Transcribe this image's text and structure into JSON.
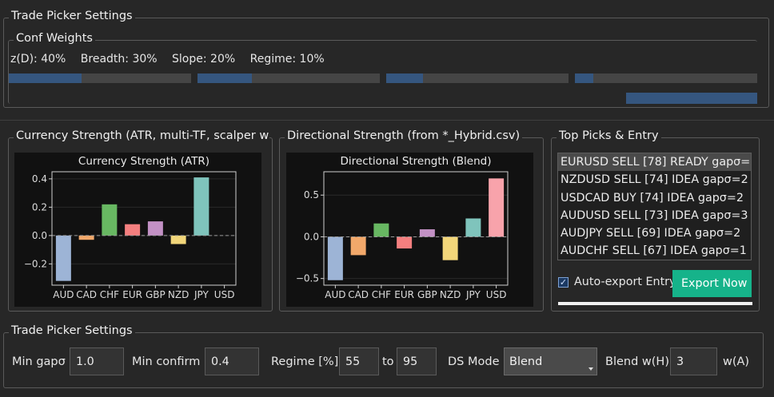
{
  "top_group": {
    "title": "Trade Picker Settings",
    "conf_weights": {
      "title": "Conf Weights",
      "items": [
        {
          "label": "z(D): 40%",
          "value": 40
        },
        {
          "label": "Breadth: 30%",
          "value": 30
        },
        {
          "label": "Slope: 20%",
          "value": 20
        },
        {
          "label": "Regime: 10%",
          "value": 10
        }
      ],
      "overall_fill": 0.18
    }
  },
  "currency_panel": {
    "title": "Currency Strength (ATR, multi-TF, scalper wei"
  },
  "directional_panel": {
    "title": "Directional Strength (from *_Hybrid.csv)"
  },
  "picks_panel": {
    "title": "Top Picks & Entry",
    "rows": [
      "EURUSD  SELL  [78]  READY  gapσ=",
      "NZDUSD  SELL  [74]  IDEA  gapσ=2",
      "USDCAD  BUY  [74]  IDEA  gapσ=2",
      "AUDUSD  SELL  [73]  IDEA  gapσ=3",
      "AUDJPY  SELL  [69]  IDEA  gapσ=2",
      "AUDCHF  SELL  [67]  IDEA  gapσ=1"
    ],
    "selected_index": 0,
    "auto_export_label": "Auto-export Entry",
    "auto_export_checked": true,
    "export_button_label": "Export Now",
    "progress": 1.0
  },
  "bottom_group": {
    "title": "Trade Picker Settings",
    "min_gap_label": "Min gapσ",
    "min_gap_value": "1.0",
    "min_confirm_label": "Min confirm",
    "min_confirm_value": "0.4",
    "regime_label": "Regime [%]",
    "regime_from": "55",
    "regime_to_label": "to",
    "regime_to": "95",
    "ds_mode_label": "DS Mode",
    "ds_mode_value": "Blend",
    "blend_wh_label": "Blend w(H)",
    "blend_wh_value": "3",
    "wa_label": "w(A)"
  },
  "chart_data": [
    {
      "type": "bar",
      "title": "Currency Strength (ATR)",
      "categories": [
        "AUD",
        "CAD",
        "CHF",
        "EUR",
        "GBP",
        "NZD",
        "JPY",
        "USD"
      ],
      "values": [
        -0.32,
        -0.03,
        0.22,
        0.08,
        0.1,
        -0.06,
        0.41,
        0.0
      ],
      "colors": [
        "#9db4d6",
        "#f2a86a",
        "#68b862",
        "#f47f7f",
        "#c391c5",
        "#f2d67a",
        "#7fc4bc",
        "#b0b0b0"
      ],
      "yticks": [
        0.4,
        0.2,
        0.0,
        -0.2
      ],
      "ytick_labels": [
        "0.4",
        "0.2",
        "0.0",
        "−0.2"
      ],
      "ylim": [
        -0.35,
        0.45
      ],
      "zero_line": "dashed"
    },
    {
      "type": "bar",
      "title": "Directional Strength (Blend)",
      "categories": [
        "AUD",
        "CAD",
        "CHF",
        "EUR",
        "GBP",
        "NZD",
        "JPY",
        "USD"
      ],
      "values": [
        -0.52,
        -0.22,
        0.16,
        -0.14,
        0.09,
        -0.28,
        0.22,
        0.7
      ],
      "colors": [
        "#9db4d6",
        "#f2a86a",
        "#68b862",
        "#f47f7f",
        "#c391c5",
        "#f2d67a",
        "#7fc4bc",
        "#f8a3ab"
      ],
      "yticks": [
        0.5,
        0.0,
        -0.5
      ],
      "ytick_labels": [
        "0.5",
        "0.0",
        "−0.5"
      ],
      "ylim": [
        -0.58,
        0.78
      ],
      "zero_line": "dashed"
    }
  ]
}
